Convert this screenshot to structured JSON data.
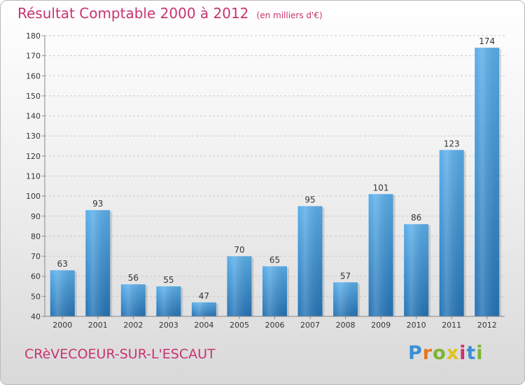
{
  "header": {
    "title": "Résultat Comptable 2000 à 2012",
    "unit": "(en milliers d'€)"
  },
  "footer": {
    "commune": "CRèVECOEUR-SUR-L'ESCAUT",
    "brand": "Proxiti",
    "brand_colors": [
      "#3a8fd6",
      "#e8761c",
      "#7ab532",
      "#e2c21c",
      "#c8336e",
      "#3a8fd6",
      "#7ab532"
    ]
  },
  "chart_data": {
    "type": "bar",
    "title": "Résultat Comptable 2000 à 2012",
    "ylabel": "en milliers d'€",
    "xlabel": "",
    "categories": [
      "2000",
      "2001",
      "2002",
      "2003",
      "2004",
      "2005",
      "2006",
      "2007",
      "2008",
      "2009",
      "2010",
      "2011",
      "2012"
    ],
    "values": [
      63,
      93,
      56,
      55,
      47,
      70,
      65,
      95,
      57,
      101,
      86,
      123,
      174
    ],
    "ylim": [
      40,
      180
    ],
    "yticks": [
      40,
      50,
      60,
      70,
      80,
      90,
      100,
      110,
      120,
      130,
      140,
      150,
      160,
      170,
      180
    ],
    "grid": true,
    "bar_color": "#3b8ed6"
  }
}
